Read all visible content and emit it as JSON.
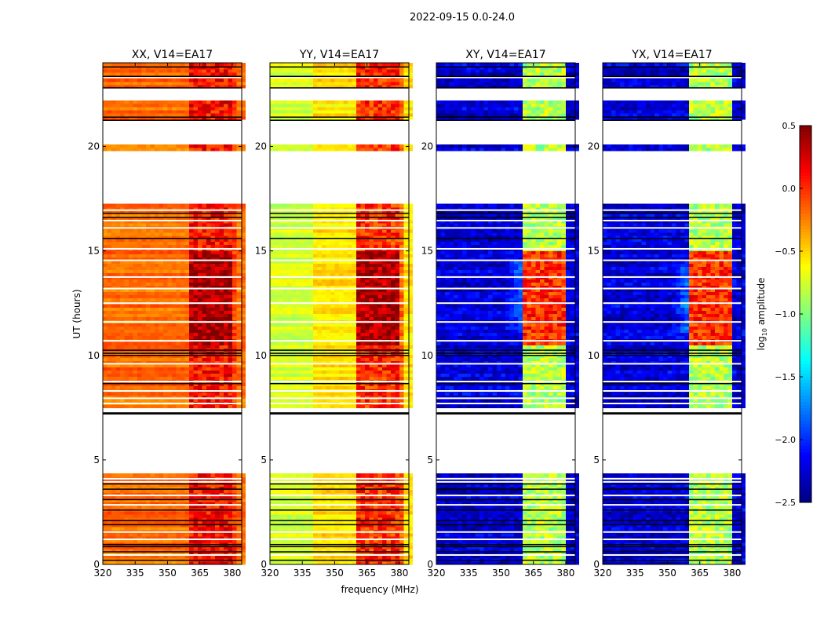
{
  "chart_data": {
    "type": "heatmap",
    "title": "2022-09-15 0.0-24.0",
    "xlabel": "frequency (MHz)",
    "ylabel": "UT (hours)",
    "xlim": [
      320,
      384.4
    ],
    "ylim": [
      0,
      24
    ],
    "xticks": [
      320,
      335,
      350,
      365,
      380
    ],
    "yticks": [
      0,
      5,
      10,
      15,
      20
    ],
    "colorbar": {
      "label": "log10 amplitude",
      "label_main": "log",
      "label_sub": "10",
      "label_rest": " amplitude",
      "range": [
        -2.5,
        0.5
      ],
      "ticks": [
        "0.5",
        "0.0",
        "−0.5",
        "−1.0",
        "−1.5",
        "−2.0",
        "−2.5"
      ],
      "tick_values": [
        0.5,
        0.0,
        -0.5,
        -1.0,
        -1.5,
        -2.0,
        -2.5
      ],
      "colormap": "jet"
    },
    "panels": [
      {
        "title": "XX, V14=EA17",
        "continuum": -0.2,
        "rfi": 0.1,
        "rfi_boost": 0.3
      },
      {
        "title": "YY, V14=EA17",
        "continuum": -0.6,
        "rfi": 0.0,
        "rfi_boost": 0.35
      },
      {
        "title": "XY, V14=EA17",
        "continuum": -2.25,
        "rfi": -0.85,
        "rfi_boost": 0.85
      },
      {
        "title": "YX, V14=EA17",
        "continuum": -2.25,
        "rfi": -0.85,
        "rfi_boost": 0.85
      }
    ],
    "rfi_bands_mhz": [
      [
        361,
        365.5
      ],
      [
        366,
        370.3
      ],
      [
        371,
        375.3
      ],
      [
        376,
        380.3
      ]
    ],
    "rfi_boost_hours": [
      10.5,
      15.0
    ],
    "data_segments_hours": [
      [
        0,
        4.35
      ],
      [
        7.5,
        15.6
      ],
      [
        15.65,
        17.25
      ],
      [
        19.85,
        20.05
      ],
      [
        21.25,
        22.25
      ],
      [
        22.75,
        24
      ]
    ],
    "flagged_rows_hours": [
      0.45,
      1.2,
      1.55,
      2.85,
      3.3,
      3.95,
      4.1,
      7.7,
      7.95,
      8.3,
      8.75,
      9.6,
      10.7,
      11.6,
      12.5,
      13.2,
      13.75,
      14.55,
      15.1,
      16.1,
      16.45,
      16.95,
      22.4,
      23.3
    ],
    "black_lines_hours": [
      0.2,
      0.6,
      0.85,
      0.95,
      1.9,
      2.1,
      2.6,
      3.1,
      3.6,
      3.85,
      7.2,
      7.25,
      8.65,
      10.0,
      10.1,
      10.25,
      15.6,
      16.6,
      16.8,
      21.25,
      21.4,
      22.8,
      23.35,
      23.8
    ]
  }
}
